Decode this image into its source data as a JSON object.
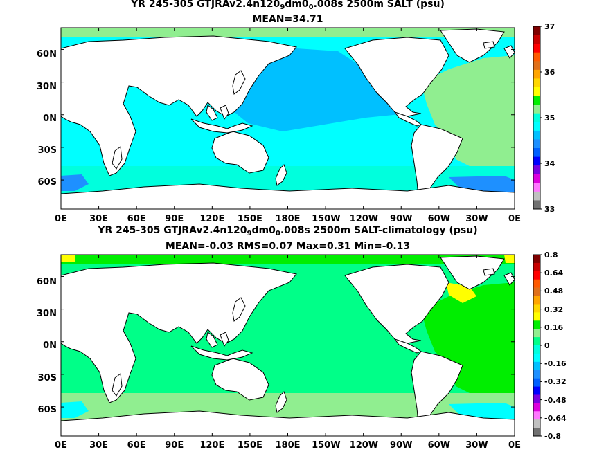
{
  "panels": [
    {
      "title_prefix": "YR 245-305 GTJRAv2.4n120",
      "title_sub1": "9",
      "title_mid": "dm0",
      "title_sub2": "0",
      "title_suffix": ".008s 2500m SALT (psu)",
      "subtitle": "MEAN=34.71",
      "colorbar_labels": [
        "37",
        "36",
        "35",
        "34",
        "33"
      ],
      "colorbar_colors": [
        "#7f0000",
        "#c80000",
        "#ff0000",
        "#ff5a00",
        "#e0701a",
        "#ffa500",
        "#ffd700",
        "#ffff00",
        "#00ee00",
        "#90ee90",
        "#00ffdd",
        "#00ffff",
        "#00c0ff",
        "#1e90ff",
        "#0060ff",
        "#0000ff",
        "#7a00e0",
        "#dd00dd",
        "#ff77ff",
        "#c0c0c0",
        "#707070"
      ],
      "colors": {
        "ocean_main": "#00ffff",
        "north_pacific": "#00c0ff",
        "atlantic": "#90ee90",
        "southern": "#00ffdd",
        "deep_blue": "#1e90ff",
        "arctic": "#90ee90"
      }
    },
    {
      "title_prefix": "YR 245-305 GTJRAv2.4n120",
      "title_sub1": "9",
      "title_mid": "dm0",
      "title_sub2": "0",
      "title_suffix": ".008s 2500m SALT-climatology (psu)",
      "subtitle": "MEAN=-0.03   RMS=0.07   Max=0.31   Min=-0.13",
      "colorbar_labels": [
        "0.8",
        "0.64",
        "0.48",
        "0.32",
        "0.16",
        "0",
        "-0.16",
        "-0.32",
        "-0.48",
        "-0.64",
        "-0.8"
      ],
      "colorbar_colors": [
        "#7f0000",
        "#c80000",
        "#ff0000",
        "#ff5a00",
        "#e0701a",
        "#ffa500",
        "#ffd700",
        "#ffff00",
        "#00ee00",
        "#90ee90",
        "#00ff88",
        "#00ffdd",
        "#00ffff",
        "#00c0ff",
        "#1e90ff",
        "#0060ff",
        "#0000ff",
        "#7a00e0",
        "#dd00dd",
        "#ff77ff",
        "#c0c0c0",
        "#707070"
      ],
      "colors": {
        "ocean_main": "#00ff88",
        "north_pacific": "#00ff88",
        "atlantic": "#00ee00",
        "southern": "#90ee90",
        "deep_blue": "#00ffff",
        "arctic": "#00ee00",
        "yellow": "#ffff00"
      }
    }
  ],
  "axes": {
    "x_labels": [
      "0E",
      "30E",
      "60E",
      "90E",
      "120E",
      "150E",
      "180E",
      "150W",
      "120W",
      "90W",
      "60W",
      "30W",
      "0E"
    ],
    "y_labels": [
      "60N",
      "30N",
      "0N",
      "30S",
      "60S"
    ],
    "lon_range": [
      0,
      360
    ],
    "lat_range": [
      -80,
      85
    ]
  }
}
